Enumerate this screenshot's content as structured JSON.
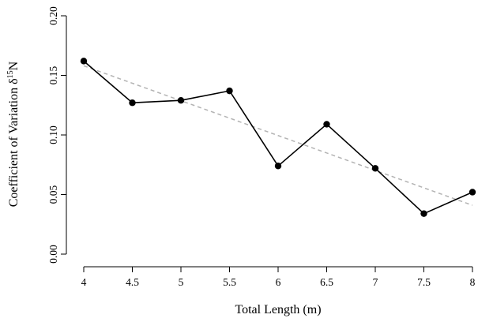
{
  "chart_data": {
    "type": "line",
    "title": "",
    "xlabel": "Total Length (m)",
    "ylabel": {
      "main": "Coefficient of Variation δ",
      "superscript": "15",
      "suffix": "N"
    },
    "xlim": [
      4,
      8
    ],
    "ylim": [
      0,
      0.2
    ],
    "x_ticks": [
      "4",
      "4.5",
      "5",
      "5.5",
      "6",
      "6.5",
      "7",
      "7.5",
      "8"
    ],
    "y_ticks": [
      "0.00",
      "0.05",
      "0.10",
      "0.15",
      "0.20"
    ],
    "grid": false,
    "legend": "none",
    "series": [
      {
        "style": "solid-line-with-filled-points",
        "color": "#000000",
        "x": [
          4,
          4.5,
          5,
          5.5,
          6,
          6.5,
          7,
          7.5,
          8
        ],
        "y": [
          0.162,
          0.127,
          0.129,
          0.137,
          0.074,
          0.109,
          0.072,
          0.034,
          0.052
        ]
      },
      {
        "style": "dashed-trend-line",
        "color": "#b3b3b3",
        "x": [
          4,
          8
        ],
        "y": [
          0.158,
          0.041
        ]
      }
    ]
  }
}
